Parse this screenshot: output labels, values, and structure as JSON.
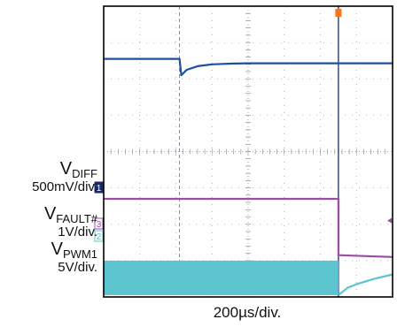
{
  "chart_data": {
    "type": "line",
    "title": "",
    "xlabel": "200µs/div.",
    "x_divisions": 8,
    "y_divisions": 8,
    "xlim_us": [
      0,
      1600
    ],
    "grid": true,
    "cursors": [
      {
        "name": "trigger",
        "x_us": 420,
        "style": "dashed",
        "color": "#7a8a99"
      },
      {
        "name": "fault",
        "x_us": 1300,
        "style": "solid",
        "color": "#2b3a8c"
      }
    ],
    "trigger_marker_color": "#f07820",
    "series": [
      {
        "label": "V",
        "label_sub": "DIFF",
        "scale": "500mV/div.",
        "channel_marker": "1",
        "color": "#1f4fa0",
        "x_us": [
          0,
          420,
          430,
          460,
          520,
          600,
          700,
          800,
          1000,
          1200,
          1600
        ],
        "y_div": [
          6.55,
          6.55,
          6.1,
          6.25,
          6.35,
          6.4,
          6.42,
          6.43,
          6.43,
          6.43,
          6.43
        ]
      },
      {
        "label": "V",
        "label_sub": "FAULT#",
        "scale": "1V/div.",
        "channel_marker": "3",
        "color": "#a04aa8",
        "x_us": [
          0,
          1300,
          1300,
          1600
        ],
        "y_div": [
          2.7,
          2.7,
          1.15,
          1.1
        ]
      },
      {
        "label": "V",
        "label_sub": "PWM1",
        "scale": "5V/div.",
        "channel_marker": "2",
        "color": "#5bc4cf",
        "band_until_us": 1300,
        "band_low_div": 0.05,
        "band_high_div": 1.0,
        "x_us": [
          1300,
          1350,
          1400,
          1500,
          1600
        ],
        "y_div": [
          0.05,
          0.25,
          0.35,
          0.5,
          0.62
        ]
      }
    ]
  }
}
